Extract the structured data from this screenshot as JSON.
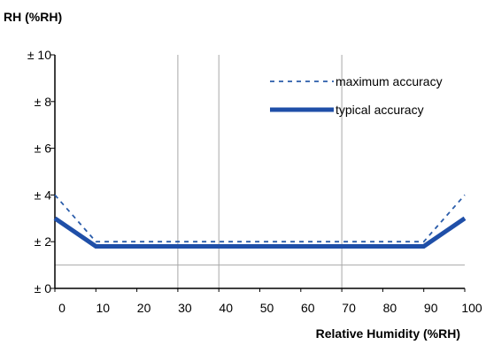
{
  "chart_data": {
    "type": "line",
    "ylabel": "RH (%RH)",
    "xlabel": "Relative Humidity (%RH)",
    "x_ticks": [
      "0",
      "10",
      "20",
      "30",
      "40",
      "50",
      "60",
      "70",
      "80",
      "90",
      "100"
    ],
    "y_ticks": [
      "± 0",
      "± 2",
      "± 4",
      "± 6",
      "± 8",
      "± 10"
    ],
    "xlim": [
      0,
      100
    ],
    "ylim": [
      0,
      10
    ],
    "vertical_gridlines_at": [
      30,
      40,
      70
    ],
    "reference_line_y": 1,
    "series": [
      {
        "name": "maximum accuracy",
        "style": "dashed",
        "color": "#2a5caa",
        "x": [
          0,
          10,
          90,
          100
        ],
        "y": [
          4,
          2,
          2,
          4
        ]
      },
      {
        "name": "typical accuracy",
        "style": "solid-thick",
        "color": "#1f4fa8",
        "x": [
          0,
          10,
          90,
          100
        ],
        "y": [
          3,
          1.8,
          1.8,
          3
        ]
      }
    ],
    "legend_position": "top-right"
  }
}
